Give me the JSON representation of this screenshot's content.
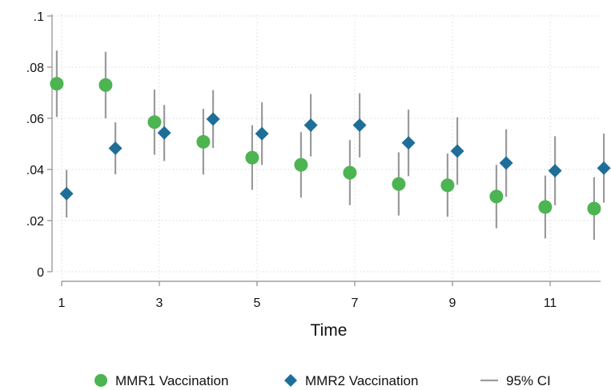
{
  "chart_data": {
    "type": "scatter",
    "title": "",
    "xlabel": "Time",
    "ylabel": "",
    "xlim": [
      1,
      12.1
    ],
    "ylim": [
      0,
      0.1
    ],
    "x_ticks": [
      1,
      3,
      5,
      7,
      9,
      11
    ],
    "x_tick_labels": [
      "1",
      "3",
      "5",
      "7",
      "9",
      "11"
    ],
    "y_ticks": [
      0,
      0.02,
      0.04,
      0.06,
      0.08,
      0.1
    ],
    "y_tick_labels": [
      "0",
      ".02",
      ".04",
      ".06",
      ".08",
      ".1"
    ],
    "grid": true,
    "legend_position": "bottom",
    "series": [
      {
        "name": "MMR1 Vaccination",
        "marker": "circle",
        "color": "#4cb450",
        "x": [
          0.9,
          1.9,
          2.9,
          3.9,
          4.9,
          5.9,
          6.9,
          7.9,
          8.9,
          9.9,
          10.9,
          11.9
        ],
        "y": [
          0.0735,
          0.073,
          0.0585,
          0.0508,
          0.0446,
          0.0418,
          0.0387,
          0.0343,
          0.0338,
          0.0294,
          0.0253,
          0.0247
        ],
        "ci_low": [
          0.0605,
          0.06,
          0.0458,
          0.038,
          0.032,
          0.029,
          0.026,
          0.022,
          0.0215,
          0.017,
          0.013,
          0.0125
        ],
        "ci_high": [
          0.0865,
          0.086,
          0.0712,
          0.0637,
          0.0573,
          0.0546,
          0.0515,
          0.0467,
          0.0462,
          0.0418,
          0.0376,
          0.037
        ]
      },
      {
        "name": "MMR2 Vaccination",
        "marker": "diamond",
        "color": "#1f6e99",
        "x": [
          1.1,
          2.1,
          3.1,
          4.1,
          5.1,
          6.1,
          7.1,
          8.1,
          9.1,
          10.1,
          11.1,
          12.1
        ],
        "y": [
          0.0305,
          0.0483,
          0.0543,
          0.0597,
          0.054,
          0.0573,
          0.0573,
          0.0504,
          0.0472,
          0.0425,
          0.0395,
          0.0405
        ],
        "ci_low": [
          0.0212,
          0.0381,
          0.0433,
          0.0484,
          0.0417,
          0.0451,
          0.0447,
          0.0374,
          0.034,
          0.0293,
          0.026,
          0.027
        ],
        "ci_high": [
          0.0398,
          0.0584,
          0.0652,
          0.071,
          0.0662,
          0.0695,
          0.0698,
          0.0634,
          0.0604,
          0.0557,
          0.053,
          0.054
        ]
      }
    ],
    "ci_legend": {
      "name": "95% CI",
      "color": "#9b9b9b"
    }
  }
}
